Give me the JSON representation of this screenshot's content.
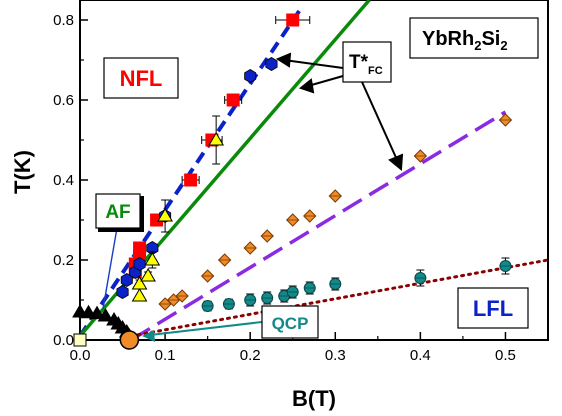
{
  "chart_data": {
    "type": "scatter",
    "xlabel": "B(T)",
    "ylabel": "T(K)",
    "xlim": [
      0,
      0.55
    ],
    "ylim": [
      0,
      0.85
    ],
    "xticks": [
      "0.0",
      "0.1",
      "0.2",
      "0.3",
      "0.4",
      "0.5"
    ],
    "yticks": [
      "0.0",
      "0.2",
      "0.4",
      "0.6",
      "0.8"
    ],
    "labels": {
      "material": "YbRh",
      "material_sub1": "2",
      "material_mid": "Si",
      "material_sub2": "2",
      "nfl": "NFL",
      "lfl": "LFL",
      "af": "AF",
      "qcp": "QCP",
      "tstar": "T*",
      "tstar_sub": "FC"
    },
    "colors": {
      "red": "#ff0000",
      "blue": "#0b22c8",
      "green": "#0a8a0a",
      "violet": "#8a2be2",
      "orange": "#f08c28",
      "teal": "#138a8a",
      "darkred": "#8b0000",
      "yellow": "#ffff00",
      "black": "#000000"
    },
    "series": [
      {
        "marker": "square-red",
        "points": [
          [
            0.065,
            0.17
          ],
          [
            0.065,
            0.19
          ],
          [
            0.07,
            0.21
          ],
          [
            0.07,
            0.23
          ],
          [
            0.09,
            0.3
          ],
          [
            0.13,
            0.4
          ],
          [
            0.155,
            0.5
          ],
          [
            0.18,
            0.6
          ],
          [
            0.25,
            0.8
          ]
        ],
        "xerr": [
          0,
          0,
          0,
          0,
          0,
          0.01,
          0.012,
          0.01,
          0.02
        ]
      },
      {
        "marker": "hexagon-blue",
        "points": [
          [
            0.05,
            0.12
          ],
          [
            0.055,
            0.15
          ],
          [
            0.065,
            0.17
          ],
          [
            0.07,
            0.19
          ],
          [
            0.085,
            0.23
          ],
          [
            0.1,
            0.31
          ],
          [
            0.2,
            0.66
          ],
          [
            0.225,
            0.69
          ]
        ]
      },
      {
        "marker": "triangle-yellow",
        "points": [
          [
            0.07,
            0.11
          ],
          [
            0.07,
            0.14
          ],
          [
            0.08,
            0.16
          ],
          [
            0.085,
            0.2
          ],
          [
            0.1,
            0.31
          ],
          [
            0.16,
            0.5
          ]
        ],
        "yerr": [
          0,
          0.01,
          0.01,
          0.02,
          0.04,
          0.06
        ]
      },
      {
        "marker": "diamond-orange",
        "points": [
          [
            0.1,
            0.09
          ],
          [
            0.11,
            0.1
          ],
          [
            0.12,
            0.11
          ],
          [
            0.15,
            0.16
          ],
          [
            0.17,
            0.2
          ],
          [
            0.2,
            0.23
          ],
          [
            0.22,
            0.26
          ],
          [
            0.25,
            0.3
          ],
          [
            0.27,
            0.31
          ],
          [
            0.3,
            0.36
          ],
          [
            0.4,
            0.46
          ],
          [
            0.5,
            0.55
          ]
        ]
      },
      {
        "marker": "circle-teal",
        "points": [
          [
            0.15,
            0.085
          ],
          [
            0.175,
            0.09
          ],
          [
            0.2,
            0.1
          ],
          [
            0.22,
            0.105
          ],
          [
            0.24,
            0.11
          ],
          [
            0.25,
            0.12
          ],
          [
            0.27,
            0.13
          ],
          [
            0.3,
            0.14
          ],
          [
            0.4,
            0.155
          ],
          [
            0.5,
            0.185
          ]
        ],
        "yerr": [
          0.012,
          0.012,
          0.015,
          0.015,
          0.015,
          0.015,
          0.015,
          0.015,
          0.02,
          0.02
        ]
      },
      {
        "marker": "triangle-black",
        "points": [
          [
            0.0,
            0.07
          ],
          [
            0.01,
            0.068
          ],
          [
            0.02,
            0.066
          ],
          [
            0.03,
            0.06
          ],
          [
            0.04,
            0.05
          ],
          [
            0.045,
            0.04
          ],
          [
            0.05,
            0.03
          ],
          [
            0.055,
            0.02
          ],
          [
            0.058,
            0.01
          ]
        ]
      }
    ],
    "lines": [
      {
        "name": "nfl-fit-dashed-blue",
        "points": [
          [
            0.0,
            0.01
          ],
          [
            0.26,
            0.83
          ]
        ]
      },
      {
        "name": "tstar-green-solid",
        "points": [
          [
            0.0,
            0.01
          ],
          [
            0.34,
            0.85
          ]
        ]
      },
      {
        "name": "tstar-violet-dashed",
        "points": [
          [
            0.06,
            0.0
          ],
          [
            0.5,
            0.57
          ]
        ]
      },
      {
        "name": "lfl-darkred-dotted",
        "points": [
          [
            0.06,
            0.01
          ],
          [
            0.55,
            0.2
          ]
        ]
      }
    ],
    "special_points": [
      {
        "name": "qcp-point",
        "x": 0.058,
        "y": 0.0
      },
      {
        "name": "origin-square",
        "x": 0.0,
        "y": 0.0
      }
    ]
  }
}
